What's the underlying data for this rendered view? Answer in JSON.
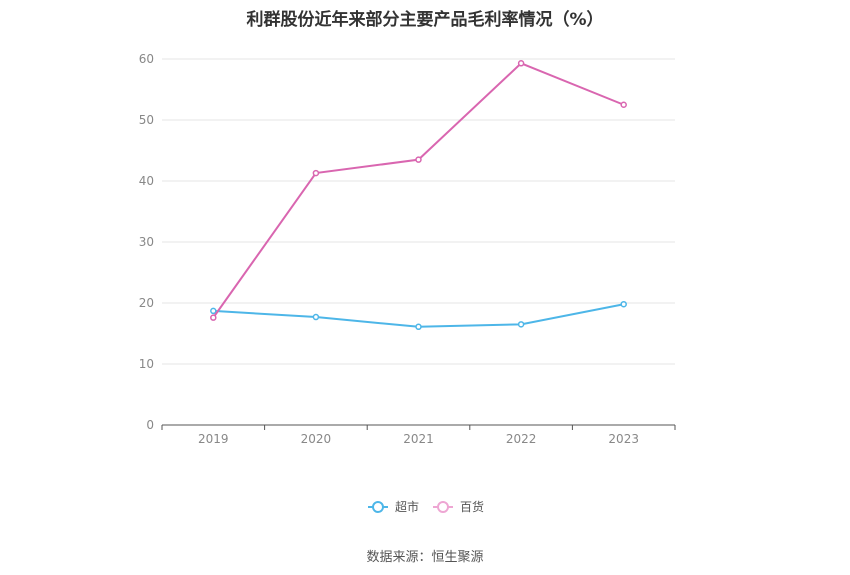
{
  "chart_data": {
    "type": "line",
    "title": "利群股份近年来部分主要产品毛利率情况（%）",
    "categories": [
      "2019",
      "2020",
      "2021",
      "2022",
      "2023"
    ],
    "series": [
      {
        "name": "超市",
        "color": "#4db6e8",
        "values": [
          18.7,
          17.7,
          16.1,
          16.5,
          19.8
        ]
      },
      {
        "name": "百货",
        "color": "#d966b0",
        "values": [
          17.6,
          41.3,
          43.5,
          59.3,
          52.5
        ]
      }
    ],
    "ylim": [
      0,
      60
    ],
    "yticks": [
      0,
      10,
      20,
      30,
      40,
      50,
      60
    ],
    "grid": true,
    "legend_position": "bottom"
  },
  "footer": {
    "source": "数据来源：恒生聚源"
  }
}
